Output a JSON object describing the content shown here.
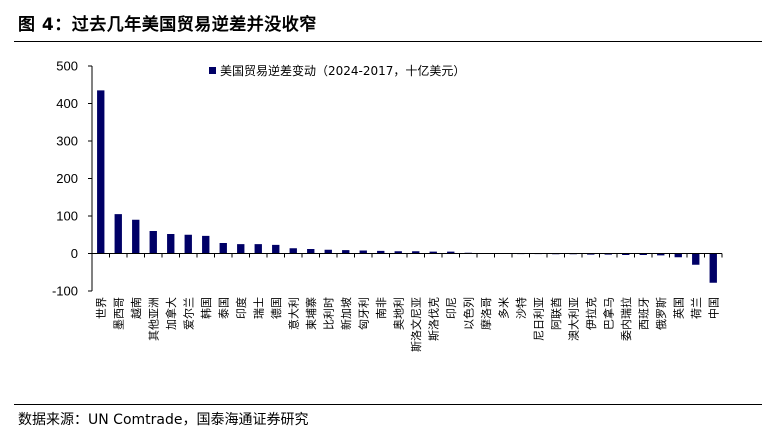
{
  "figure_title": "图 4：过去几年美国贸易逆差并没收窄",
  "source": "数据来源：UN Comtrade，国泰海通证券研究",
  "colors": {
    "bar": "#000066",
    "axis": "#000000"
  },
  "chart_data": {
    "type": "bar",
    "title": "",
    "xlabel": "",
    "ylabel": "",
    "ylim": [
      -100,
      500
    ],
    "yticks": [
      -100,
      0,
      100,
      200,
      300,
      400,
      500
    ],
    "grid": false,
    "legend_position": "top-center",
    "categories": [
      "世界",
      "墨西哥",
      "越南",
      "其他亚洲",
      "加拿大",
      "爱尔兰",
      "韩国",
      "泰国",
      "印度",
      "瑞士",
      "德国",
      "意大利",
      "柬埔寨",
      "比利时",
      "新加坡",
      "匈牙利",
      "南非",
      "奥地利",
      "斯洛文尼亚",
      "斯洛伐克",
      "印尼",
      "以色列",
      "摩洛哥",
      "多米",
      "沙特",
      "尼日利亚",
      "阿联酋",
      "澳大利亚",
      "伊拉克",
      "巴拿马",
      "委内瑞拉",
      "西班牙",
      "俄罗斯",
      "英国",
      "荷兰",
      "中国"
    ],
    "series": [
      {
        "name": "美国贸易逆差变动（2024-2017，十亿美元）",
        "values": [
          435,
          105,
          90,
          60,
          52,
          50,
          47,
          28,
          25,
          25,
          23,
          14,
          12,
          10,
          9,
          8,
          7,
          6,
          6,
          5,
          5,
          2,
          1,
          1,
          0,
          -1,
          -2,
          -2,
          -3,
          -3,
          -4,
          -4,
          -5,
          -10,
          -30,
          -78
        ]
      }
    ]
  }
}
